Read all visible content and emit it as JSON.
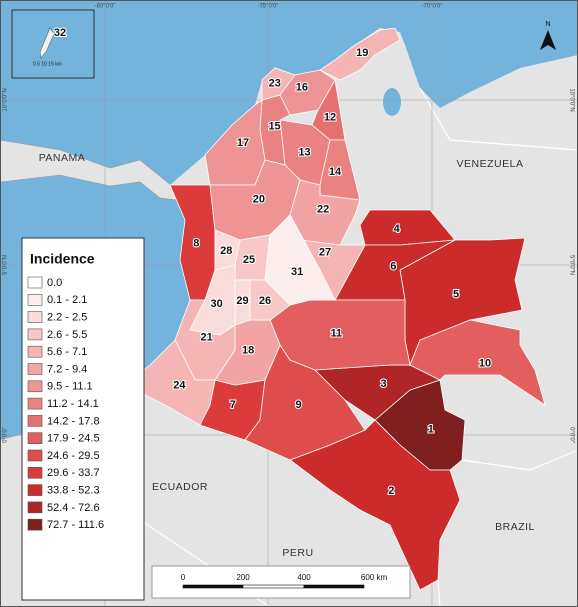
{
  "map": {
    "countries": [
      "PANAMA",
      "VENEZUELA",
      "ECUADOR",
      "PERU",
      "BRAZIL"
    ],
    "longitudes": [
      "-80°0'0\"",
      "-75°0'0\"",
      "-70°0'0\""
    ],
    "latitudes": [
      "10°0'0\"N",
      "5°0'0\"N",
      "0°0'0\""
    ],
    "regions": [
      {
        "label": "1",
        "color": "#7f1f1f"
      },
      {
        "label": "2",
        "color": "#cc2b2b"
      },
      {
        "label": "3",
        "color": "#b02525"
      },
      {
        "label": "4",
        "color": "#cc2b2b"
      },
      {
        "label": "5",
        "color": "#cc2b2b"
      },
      {
        "label": "6",
        "color": "#cc2b2b"
      },
      {
        "label": "7",
        "color": "#db3b3b"
      },
      {
        "label": "8",
        "color": "#db3b3b"
      },
      {
        "label": "9",
        "color": "#df4c4c"
      },
      {
        "label": "10",
        "color": "#e35f5f"
      },
      {
        "label": "11",
        "color": "#e35f5f"
      },
      {
        "label": "12",
        "color": "#e67070"
      },
      {
        "label": "13",
        "color": "#ea8282"
      },
      {
        "label": "14",
        "color": "#ea8282"
      },
      {
        "label": "15",
        "color": "#ea8282"
      },
      {
        "label": "16",
        "color": "#ee9494"
      },
      {
        "label": "17",
        "color": "#ee9494"
      },
      {
        "label": "18",
        "color": "#f2a4a4"
      },
      {
        "label": "19",
        "color": "#f5b5b5"
      },
      {
        "label": "20",
        "color": "#ee9494"
      },
      {
        "label": "21",
        "color": "#f5b5b5"
      },
      {
        "label": "22",
        "color": "#f2a4a4"
      },
      {
        "label": "23",
        "color": "#f5b5b5"
      },
      {
        "label": "24",
        "color": "#f5b5b5"
      },
      {
        "label": "25",
        "color": "#f8c8c8"
      },
      {
        "label": "26",
        "color": "#f8c8c8"
      },
      {
        "label": "27",
        "color": "#f5b5b5"
      },
      {
        "label": "28",
        "color": "#fbdcdc"
      },
      {
        "label": "29",
        "color": "#fbdcdc"
      },
      {
        "label": "30",
        "color": "#fbdcdc"
      },
      {
        "label": "31",
        "color": "#fdeeee"
      }
    ],
    "legend": {
      "title": "Incidence",
      "items": [
        {
          "label": "0.0",
          "color": "#ffffff"
        },
        {
          "label": "0.1 - 2.1",
          "color": "#fdeeee"
        },
        {
          "label": "2.2 - 2.5",
          "color": "#fbdcdc"
        },
        {
          "label": "2.6 - 5.5",
          "color": "#f8c8c8"
        },
        {
          "label": "5.6 - 7.1",
          "color": "#f5b5b5"
        },
        {
          "label": "7.2 - 9.4",
          "color": "#f2a4a4"
        },
        {
          "label": "9.5 - 11.1",
          "color": "#ee9494"
        },
        {
          "label": "11.2 - 14.1",
          "color": "#ea8282"
        },
        {
          "label": "14.2 - 17.8",
          "color": "#e67070"
        },
        {
          "label": "17.9 - 24.5",
          "color": "#e35f5f"
        },
        {
          "label": "24.6 - 29.5",
          "color": "#df4c4c"
        },
        {
          "label": "29.6 - 33.7",
          "color": "#db3b3b"
        },
        {
          "label": "33.8 - 52.3",
          "color": "#cc2b2b"
        },
        {
          "label": "52.4 - 72.6",
          "color": "#b02525"
        },
        {
          "label": "72.7 - 111.6",
          "color": "#7f1f1f"
        }
      ]
    },
    "scale": [
      "0",
      "200",
      "400",
      "600 km"
    ],
    "north": "N",
    "inset": {
      "label": "32",
      "scale": "0  5  10  15 km"
    }
  }
}
